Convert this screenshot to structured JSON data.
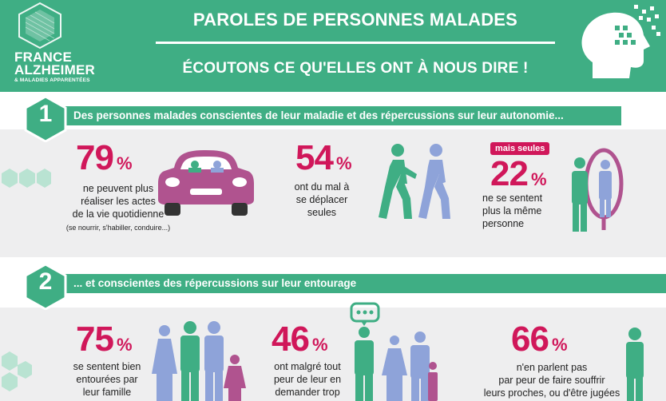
{
  "header": {
    "logo_line1": "FRANCE",
    "logo_line2": "ALZHEIMER",
    "logo_line3": "& MALADIES APPARENTÉES",
    "title": "PAROLES DE PERSONNES MALADES",
    "subtitle": "ÉCOUTONS CE QU'ELLES ONT À NOUS DIRE !",
    "icon": "head-pixel-icon"
  },
  "colors": {
    "green": "#3fae84",
    "magenta": "#d0175a",
    "purple": "#b0538f",
    "blue": "#8ea3d9"
  },
  "section1": {
    "number": "1",
    "heading": "Des personnes malades conscientes de leur maladie et des répercussions sur leur autonomie...",
    "stats": [
      {
        "value": "79",
        "unit": "%",
        "desc1": "ne peuvent plus",
        "desc2": "réaliser les actes",
        "desc3": "de la vie quotidienne",
        "note": "(se nourrir, s'habiller, conduire...)",
        "icon": "car-icon"
      },
      {
        "value": "54",
        "unit": "%",
        "desc1": "ont du mal à",
        "desc2": "se déplacer",
        "desc3": "seules",
        "icon": "walking-people-icon"
      },
      {
        "badge": "mais seules",
        "value": "22",
        "unit": "%",
        "desc1": "ne se sentent",
        "desc2": "plus la même",
        "desc3": "personne",
        "icon": "mirror-icon"
      }
    ]
  },
  "section2": {
    "number": "2",
    "heading": "... et conscientes des répercussions sur leur entourage",
    "stats": [
      {
        "value": "75",
        "unit": "%",
        "desc1": "se sentent bien",
        "desc2": "entourées par",
        "desc3": "leur famille",
        "icon": "family-icon"
      },
      {
        "value": "46",
        "unit": "%",
        "desc1": "ont malgré tout",
        "desc2": "peur de leur en",
        "desc3": "demander trop",
        "icon": "speech-bubble-family-icon"
      },
      {
        "value": "66",
        "unit": "%",
        "desc1": "n'en parlent pas",
        "desc2": "par peur de faire souffrir",
        "desc3": "leurs proches, ou d'être jugées",
        "icon": "silent-person-icon"
      }
    ]
  }
}
